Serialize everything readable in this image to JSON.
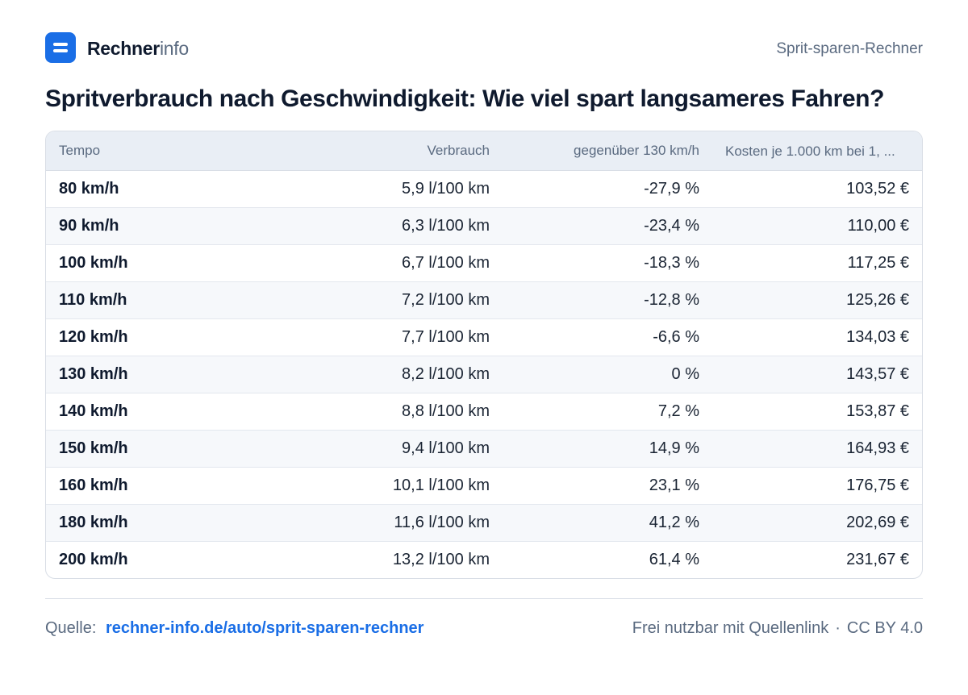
{
  "header": {
    "brand_strong": "Rechner",
    "brand_light": "info",
    "tool_name": "Sprit-sparen-Rechner"
  },
  "title": "Spritverbrauch nach Geschwindigkeit: Wie viel spart langsameres Fahren?",
  "chart_data": {
    "type": "table",
    "columns": [
      "Tempo",
      "Verbrauch",
      "gegenüber 130 km/h",
      "Kosten je 1.000 km bei 1, ..."
    ],
    "rows": [
      [
        "80 km/h",
        "5,9 l/100 km",
        "-27,9 %",
        "103,52 €"
      ],
      [
        "90 km/h",
        "6,3 l/100 km",
        "-23,4 %",
        "110,00 €"
      ],
      [
        "100 km/h",
        "6,7 l/100 km",
        "-18,3 %",
        "117,25 €"
      ],
      [
        "110 km/h",
        "7,2 l/100 km",
        "-12,8 %",
        "125,26 €"
      ],
      [
        "120 km/h",
        "7,7 l/100 km",
        "-6,6 %",
        "134,03 €"
      ],
      [
        "130 km/h",
        "8,2 l/100 km",
        "0 %",
        "143,57 €"
      ],
      [
        "140 km/h",
        "8,8 l/100 km",
        "7,2 %",
        "153,87 €"
      ],
      [
        "150 km/h",
        "9,4 l/100 km",
        "14,9 %",
        "164,93 €"
      ],
      [
        "160 km/h",
        "10,1 l/100 km",
        "23,1 %",
        "176,75 €"
      ],
      [
        "180 km/h",
        "11,6 l/100 km",
        "41,2 %",
        "202,69 €"
      ],
      [
        "200 km/h",
        "13,2 l/100 km",
        "61,4 %",
        "231,67 €"
      ]
    ]
  },
  "footer": {
    "source_label": "Quelle:",
    "source_link": "rechner-info.de/auto/sprit-sparen-rechner",
    "license_text": "Frei nutzbar mit Quellenlink",
    "separator": "·",
    "license": "CC BY 4.0"
  },
  "colors": {
    "accent": "#1a6ee6",
    "header_bg": "#e9eef5",
    "zebra": "#f6f8fb"
  }
}
